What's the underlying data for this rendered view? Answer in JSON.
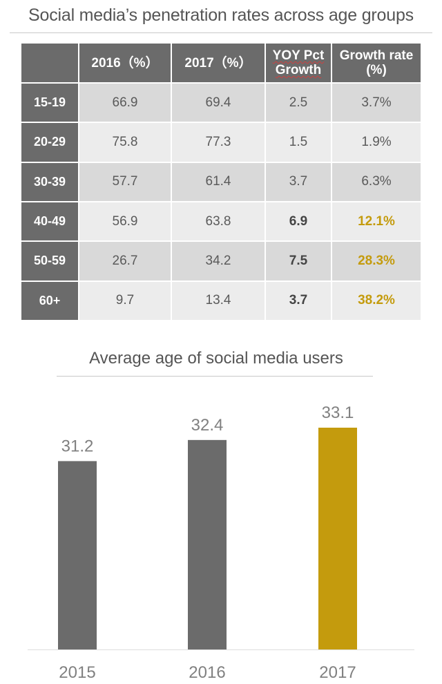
{
  "chart_data": [
    {
      "type": "table",
      "title": "Social media’s penetration rates across age groups",
      "columns": [
        "",
        "2016（%）",
        "2017（%）",
        "YOY Pct Growth",
        "Growth rate (%)"
      ],
      "rows": [
        {
          "group": "15-19",
          "y2016": "66.9",
          "y2017": "69.4",
          "yoy": "2.5",
          "growth": "3.7%"
        },
        {
          "group": "20-29",
          "y2016": "75.8",
          "y2017": "77.3",
          "yoy": "1.5",
          "growth": "1.9%"
        },
        {
          "group": "30-39",
          "y2016": "57.7",
          "y2017": "61.4",
          "yoy": "3.7",
          "growth": "6.3%"
        },
        {
          "group": "40-49",
          "y2016": "56.9",
          "y2017": "63.8",
          "yoy": "6.9",
          "growth": "12.1%"
        },
        {
          "group": "50-59",
          "y2016": "26.7",
          "y2017": "34.2",
          "yoy": "7.5",
          "growth": "28.3%"
        },
        {
          "group": "60+",
          "y2016": "9.7",
          "y2017": "13.4",
          "yoy": "3.7",
          "growth": "38.2%"
        }
      ],
      "highlight_color": "#c49b0d"
    },
    {
      "type": "bar",
      "title": "Average age of social media users",
      "categories": [
        "2015",
        "2016",
        "2017"
      ],
      "values": [
        31.2,
        32.4,
        33.1
      ],
      "labels": [
        "31.2",
        "32.4",
        "33.1"
      ],
      "colors": [
        "#6b6b6b",
        "#6b6b6b",
        "#c49b0d"
      ],
      "ylim": [
        20.5,
        33.1
      ],
      "grid": false,
      "axis_line_color": "#dddddd",
      "label_color": "#808080"
    }
  ]
}
